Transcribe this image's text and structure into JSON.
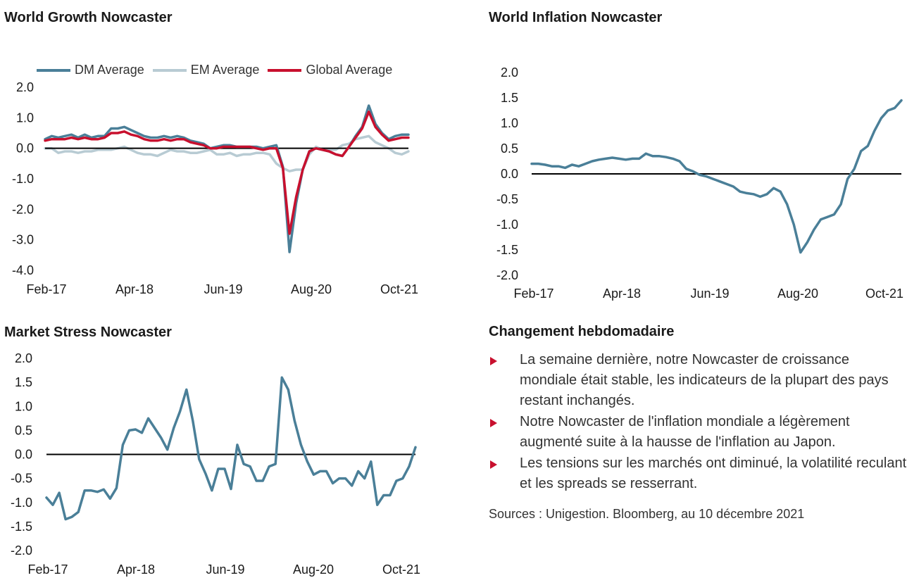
{
  "colors": {
    "dm": "#4a7f98",
    "em": "#b8cbd3",
    "global": "#c8102e",
    "single": "#4a7f98",
    "zero_line": "#000000",
    "bullet": "#c8102e"
  },
  "chart_data": [
    {
      "id": "growth",
      "type": "line",
      "title": "World Growth Nowcaster",
      "x_tick_labels": [
        "Feb-17",
        "Apr-18",
        "Jun-19",
        "Aug-20",
        "Oct-21"
      ],
      "y_tick_labels": [
        "2.0",
        "1.0",
        "0.0",
        "-1.0",
        "-2.0",
        "-3.0",
        "-4.0"
      ],
      "ylim": [
        -4.0,
        2.0
      ],
      "xlim": [
        0,
        56
      ],
      "legend_position": "top",
      "series": [
        {
          "name": "DM Average",
          "color_key": "dm",
          "values": [
            0.3,
            0.4,
            0.35,
            0.4,
            0.45,
            0.35,
            0.45,
            0.35,
            0.4,
            0.4,
            0.65,
            0.65,
            0.7,
            0.6,
            0.5,
            0.4,
            0.35,
            0.35,
            0.4,
            0.35,
            0.4,
            0.35,
            0.25,
            0.2,
            0.15,
            0.0,
            0.05,
            0.1,
            0.1,
            0.05,
            0.05,
            0.05,
            0.05,
            0.0,
            0.05,
            0.1,
            -0.6,
            -3.4,
            -1.8,
            -0.7,
            -0.1,
            0.0,
            -0.05,
            -0.1,
            -0.2,
            -0.25,
            0.05,
            0.4,
            0.7,
            1.4,
            0.8,
            0.5,
            0.3,
            0.4,
            0.45,
            0.45
          ]
        },
        {
          "name": "EM Average",
          "color_key": "em",
          "values": [
            0.0,
            0.0,
            -0.15,
            -0.1,
            -0.1,
            -0.15,
            -0.1,
            -0.1,
            -0.05,
            -0.05,
            -0.05,
            0.0,
            0.05,
            -0.05,
            -0.15,
            -0.2,
            -0.2,
            -0.25,
            -0.15,
            -0.05,
            -0.1,
            -0.1,
            -0.15,
            -0.15,
            -0.1,
            -0.05,
            -0.2,
            -0.2,
            -0.15,
            -0.25,
            -0.2,
            -0.2,
            -0.15,
            -0.15,
            -0.2,
            -0.5,
            -0.65,
            -0.75,
            -0.7,
            -0.7,
            -0.2,
            0.05,
            -0.05,
            -0.05,
            -0.05,
            0.1,
            0.15,
            0.3,
            0.35,
            0.4,
            0.2,
            0.1,
            0.0,
            -0.15,
            -0.2,
            -0.1
          ]
        },
        {
          "name": "Global Average",
          "color_key": "global",
          "values": [
            0.25,
            0.3,
            0.3,
            0.3,
            0.35,
            0.3,
            0.35,
            0.3,
            0.3,
            0.35,
            0.5,
            0.5,
            0.55,
            0.45,
            0.4,
            0.3,
            0.25,
            0.25,
            0.3,
            0.25,
            0.3,
            0.3,
            0.2,
            0.15,
            0.1,
            0.0,
            0.0,
            0.05,
            0.05,
            0.05,
            0.05,
            0.05,
            0.0,
            -0.05,
            0.0,
            0.0,
            -0.65,
            -2.8,
            -1.6,
            -0.7,
            -0.1,
            0.0,
            -0.05,
            -0.1,
            -0.2,
            -0.25,
            0.05,
            0.35,
            0.65,
            1.2,
            0.7,
            0.45,
            0.25,
            0.3,
            0.35,
            0.35
          ]
        }
      ]
    },
    {
      "id": "inflation",
      "type": "line",
      "title": "World Inflation Nowcaster",
      "x_tick_labels": [
        "Feb-17",
        "Apr-18",
        "Jun-19",
        "Aug-20",
        "Oct-21"
      ],
      "y_tick_labels": [
        "2.0",
        "1.5",
        "1.0",
        "0.5",
        "0.0",
        "-0.5",
        "-1.0",
        "-1.5",
        "-2.0"
      ],
      "ylim": [
        -2.0,
        2.0
      ],
      "xlim": [
        0,
        56
      ],
      "series": [
        {
          "color_key": "single",
          "values": [
            0.2,
            0.2,
            0.18,
            0.15,
            0.15,
            0.12,
            0.18,
            0.15,
            0.2,
            0.25,
            0.28,
            0.3,
            0.32,
            0.3,
            0.28,
            0.3,
            0.3,
            0.4,
            0.35,
            0.35,
            0.33,
            0.3,
            0.25,
            0.1,
            0.05,
            -0.02,
            -0.05,
            -0.1,
            -0.15,
            -0.2,
            -0.25,
            -0.35,
            -0.38,
            -0.4,
            -0.45,
            -0.4,
            -0.28,
            -0.35,
            -0.6,
            -1.0,
            -1.55,
            -1.35,
            -1.1,
            -0.9,
            -0.85,
            -0.8,
            -0.6,
            -0.1,
            0.1,
            0.45,
            0.55,
            0.85,
            1.1,
            1.25,
            1.3,
            1.45
          ]
        }
      ]
    },
    {
      "id": "stress",
      "type": "line",
      "title": "Market Stress Nowcaster",
      "x_tick_labels": [
        "Feb-17",
        "Apr-18",
        "Jun-19",
        "Aug-20",
        "Oct-21"
      ],
      "y_tick_labels": [
        "2.0",
        "1.5",
        "1.0",
        "0.5",
        "0.0",
        "-0.5",
        "-1.0",
        "-1.5",
        "-2.0"
      ],
      "ylim": [
        -2.0,
        2.0
      ],
      "xlim": [
        0,
        56
      ],
      "series": [
        {
          "color_key": "single",
          "values": [
            -0.9,
            -1.05,
            -0.8,
            -1.35,
            -1.3,
            -1.2,
            -0.75,
            -0.75,
            -0.78,
            -0.73,
            -0.92,
            -0.7,
            0.2,
            0.5,
            0.52,
            0.45,
            0.75,
            0.55,
            0.35,
            0.1,
            0.55,
            0.9,
            1.35,
            0.7,
            -0.1,
            -0.4,
            -0.75,
            -0.3,
            -0.3,
            -0.72,
            0.2,
            -0.2,
            -0.25,
            -0.55,
            -0.55,
            -0.25,
            -0.2,
            1.6,
            1.35,
            0.7,
            0.2,
            -0.15,
            -0.42,
            -0.35,
            -0.35,
            -0.6,
            -0.5,
            -0.5,
            -0.65,
            -0.35,
            -0.5,
            -0.15,
            -1.05,
            -0.85,
            -0.85,
            -0.55,
            -0.5,
            -0.25,
            0.15
          ]
        }
      ]
    }
  ],
  "commentary": {
    "title": "Changement hebdomadaire",
    "bullets": [
      "La semaine dernière, notre Nowcaster de croissance mondiale était stable, les indicateurs de la plupart des pays restant inchangés.",
      "Notre Nowcaster de l'inflation mondiale a légèrement augmenté suite à la hausse de l'inflation au Japon.",
      "Les tensions sur les marchés ont diminué, la volatilité reculant et les spreads se resserrant."
    ],
    "sources": "Sources : Unigestion. Bloomberg, au 10 décembre 2021"
  }
}
